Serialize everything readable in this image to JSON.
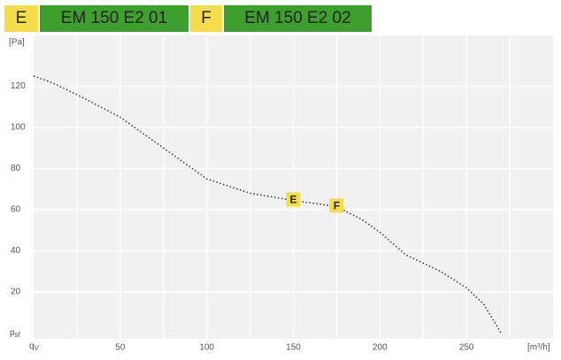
{
  "header": [
    {
      "label": "E",
      "name": "EM 150 E2 01"
    },
    {
      "label": "F",
      "name": "EM 150 E2 02"
    }
  ],
  "chart_data": {
    "type": "line",
    "y_unit": "[Pa]",
    "x_unit": "[m³/h]",
    "y_label": {
      "symbol": "p",
      "subscript": "sf"
    },
    "x_label": {
      "symbol": "q",
      "subscript": "V"
    },
    "x": [
      0,
      10,
      25,
      50,
      75,
      100,
      125,
      150,
      175,
      190,
      200,
      215,
      235,
      250,
      260,
      270
    ],
    "values": [
      125,
      122,
      116,
      105,
      90,
      75,
      68,
      64.5,
      61.5,
      55,
      49,
      38,
      30,
      22,
      14,
      0
    ],
    "color": "#333333",
    "points": [
      {
        "label": "E",
        "x": 150,
        "y": 65
      },
      {
        "label": "F",
        "x": 175,
        "y": 62
      }
    ],
    "xlim": [
      0,
      300
    ],
    "ylim": [
      0,
      145
    ],
    "xticks": [
      50,
      100,
      150,
      200,
      250
    ],
    "yticks": [
      20,
      40,
      60,
      80,
      100,
      120
    ],
    "xgrid": [
      25,
      50,
      75,
      100,
      125,
      150,
      175,
      200,
      225,
      250,
      275
    ],
    "grid": true
  }
}
